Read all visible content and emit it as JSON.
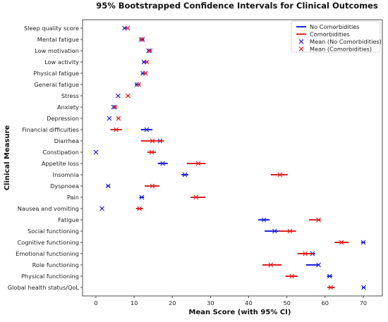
{
  "chart_data": {
    "type": "scatter",
    "title": "95% Bootstrapped Confidence Intervals for Clinical Outcomes",
    "xlabel": "Mean Score (with 95% CI)",
    "ylabel": "Clinical Measure",
    "xlim": [
      -3.5,
      75
    ],
    "xticks": [
      0,
      10,
      20,
      30,
      40,
      50,
      60,
      70
    ],
    "grid": false,
    "legend_position": "top-right",
    "categories": [
      "Sleep quality score",
      "Mental fatigue",
      "Low motivation",
      "Low activity",
      "Physical fatigue",
      "General fatigue",
      "Stress",
      "Anxiety",
      "Depression",
      "Financial difficulties",
      "Diarrhea",
      "Constipation",
      "Appetite loss",
      "Insomnia",
      "Dyspnoea",
      "Pain",
      "Nausea and vomiting",
      "Fatigue",
      "Social functioning",
      "Cognitive functioning",
      "Emotional functioning",
      "Role functioning",
      "Physical functioning",
      "Global health status/QoL"
    ],
    "series": [
      {
        "name": "No Comorbidities",
        "marker_name": "Mean (No Comorbidities)",
        "color": "#1f1fe0",
        "mean": [
          7.5,
          12.2,
          13.8,
          12.6,
          12.3,
          10.7,
          5.8,
          4.6,
          3.5,
          13.3,
          16.8,
          0.0,
          17.5,
          23.3,
          3.2,
          12.0,
          1.6,
          44.0,
          46.8,
          70.0,
          56.7,
          58.3,
          61.2,
          70.1
        ],
        "ci_low": [
          7.2,
          11.8,
          13.5,
          12.2,
          11.9,
          10.3,
          5.6,
          4.4,
          3.3,
          11.8,
          15.8,
          0.0,
          16.2,
          22.4,
          2.8,
          11.4,
          1.4,
          42.5,
          44.2,
          69.5,
          56.0,
          55.0,
          60.5,
          69.7
        ],
        "ci_high": [
          7.9,
          12.6,
          14.1,
          13.0,
          12.7,
          11.1,
          6.0,
          4.8,
          3.7,
          14.8,
          17.8,
          0.0,
          18.8,
          24.2,
          3.6,
          12.6,
          1.8,
          45.5,
          49.4,
          70.5,
          57.4,
          58.6,
          61.9,
          70.5
        ]
      },
      {
        "name": "Comorbidities",
        "marker_name": "Mean (Comorbidities)",
        "color": "#e01f1f",
        "mean": [
          8.3,
          11.8,
          14.2,
          13.3,
          12.9,
          11.2,
          8.4,
          5.0,
          5.9,
          5.3,
          14.8,
          14.6,
          26.8,
          48.2,
          14.8,
          26.2,
          11.4,
          58.3,
          50.8,
          64.3,
          54.8,
          45.8,
          51.3,
          61.5
        ],
        "ci_low": [
          8.0,
          11.4,
          13.8,
          12.9,
          12.5,
          10.8,
          8.1,
          4.6,
          5.6,
          3.8,
          11.8,
          13.5,
          23.8,
          45.8,
          12.8,
          24.8,
          10.5,
          55.8,
          47.8,
          62.5,
          52.8,
          43.6,
          49.6,
          60.6
        ],
        "ci_high": [
          8.6,
          12.2,
          14.6,
          13.7,
          13.3,
          11.6,
          8.7,
          5.4,
          6.2,
          6.8,
          17.8,
          15.7,
          28.7,
          50.2,
          16.6,
          28.7,
          12.3,
          58.8,
          52.4,
          66.2,
          56.8,
          48.6,
          52.8,
          62.5
        ]
      }
    ]
  }
}
